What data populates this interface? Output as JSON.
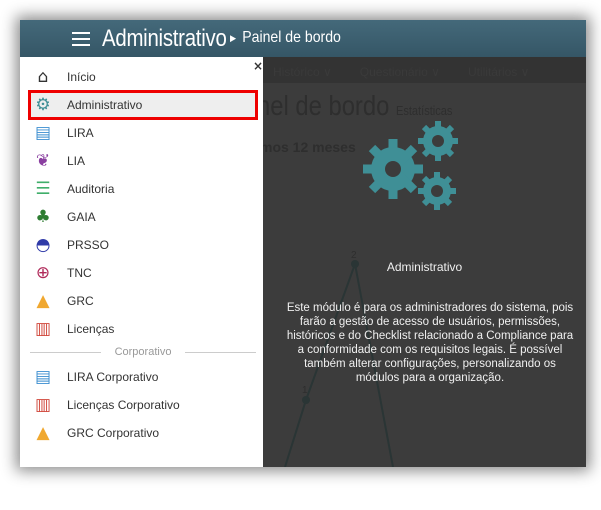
{
  "header": {
    "title": "Administrativo",
    "breadcrumb": "Painel de bordo"
  },
  "background": {
    "nav": [
      "Histórico ∨",
      "Questionário ∨",
      "Utilitários ∨"
    ],
    "page_title": "nel de bordo",
    "page_subtitle": "Estatísticas",
    "section": "mos 12 meses",
    "chart_labels": [
      "2",
      "1"
    ]
  },
  "menu": {
    "close": "×",
    "items": [
      {
        "label": "Início",
        "icon": "home-icon"
      },
      {
        "label": "Administrativo",
        "icon": "gears-icon",
        "active": true
      },
      {
        "label": "LIRA",
        "icon": "document-hands-icon"
      },
      {
        "label": "LIA",
        "icon": "brain-icon"
      },
      {
        "label": "Auditoria",
        "icon": "checklist-icon"
      },
      {
        "label": "GAIA",
        "icon": "sprout-icon"
      },
      {
        "label": "PRSSO",
        "icon": "helmet-icon"
      },
      {
        "label": "TNC",
        "icon": "pdca-icon"
      },
      {
        "label": "GRC",
        "icon": "warning-icon"
      },
      {
        "label": "Licenças",
        "icon": "certificate-icon"
      }
    ],
    "section": "Corporativo",
    "corporate_items": [
      {
        "label": "LIRA Corporativo",
        "icon": "document-hands-icon"
      },
      {
        "label": "Licenças Corporativo",
        "icon": "certificate-icon"
      },
      {
        "label": "GRC Corporativo",
        "icon": "warning-icon"
      }
    ]
  },
  "tooltip": {
    "title": "Administrativo",
    "description": "Este módulo é para os administradores do sistema, pois farão a gestão de acesso de usuários, permissões, históricos e do Checklist relacionado a Compliance para a conformidade com os requisitos legais. É possível também alterar configurações,  personalizando os módulos para a organização."
  },
  "colors": {
    "header": "#3d6270",
    "accent": "#3f8f96",
    "highlight": "#e00000",
    "overlay": "#3c3c3c"
  }
}
